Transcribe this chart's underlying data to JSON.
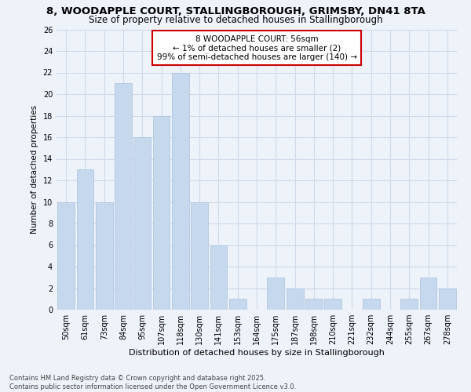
{
  "title1": "8, WOODAPPLE COURT, STALLINGBOROUGH, GRIMSBY, DN41 8TA",
  "title2": "Size of property relative to detached houses in Stallingborough",
  "xlabel": "Distribution of detached houses by size in Stallingborough",
  "ylabel": "Number of detached properties",
  "categories": [
    "50sqm",
    "61sqm",
    "73sqm",
    "84sqm",
    "95sqm",
    "107sqm",
    "118sqm",
    "130sqm",
    "141sqm",
    "153sqm",
    "164sqm",
    "175sqm",
    "187sqm",
    "198sqm",
    "210sqm",
    "221sqm",
    "232sqm",
    "244sqm",
    "255sqm",
    "267sqm",
    "278sqm"
  ],
  "values": [
    10,
    13,
    10,
    21,
    16,
    18,
    22,
    10,
    6,
    1,
    0,
    3,
    2,
    1,
    1,
    0,
    1,
    0,
    1,
    3,
    2
  ],
  "bar_color": "#c5d8ee",
  "bar_edge_color": "#aac2de",
  "annotation_text": "8 WOODAPPLE COURT: 56sqm\n← 1% of detached houses are smaller (2)\n99% of semi-detached houses are larger (140) →",
  "annotation_box_color": "#ffffff",
  "annotation_box_edge_color": "#cc0000",
  "background_color": "#eef2f9",
  "grid_color": "#d0daea",
  "ylim": [
    0,
    26
  ],
  "yticks": [
    0,
    2,
    4,
    6,
    8,
    10,
    12,
    14,
    16,
    18,
    20,
    22,
    24,
    26
  ],
  "footer_text": "Contains HM Land Registry data © Crown copyright and database right 2025.\nContains public sector information licensed under the Open Government Licence v3.0.",
  "title1_fontsize": 9.5,
  "title2_fontsize": 8.5,
  "xlabel_fontsize": 8,
  "ylabel_fontsize": 7.5,
  "tick_fontsize": 7,
  "annotation_fontsize": 7.5,
  "footer_fontsize": 6
}
